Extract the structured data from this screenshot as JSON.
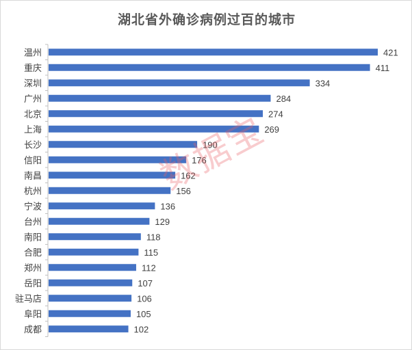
{
  "chart_data": {
    "type": "bar",
    "orientation": "horizontal",
    "title": "湖北省外确诊病例过百的城市",
    "xlabel": "",
    "ylabel": "",
    "grid": false,
    "legend": "none",
    "bar_color": "#4472C4",
    "xlim": [
      0,
      430
    ],
    "categories": [
      "温州",
      "重庆",
      "深圳",
      "广州",
      "北京",
      "上海",
      "长沙",
      "信阳",
      "南昌",
      "杭州",
      "宁波",
      "台州",
      "南阳",
      "合肥",
      "郑州",
      "岳阳",
      "驻马店",
      "阜阳",
      "成都"
    ],
    "values": [
      421,
      411,
      334,
      284,
      274,
      269,
      190,
      176,
      162,
      156,
      136,
      129,
      118,
      115,
      112,
      107,
      106,
      105,
      102
    ]
  },
  "watermark": "数据宝",
  "watermark_color": "#E86066"
}
